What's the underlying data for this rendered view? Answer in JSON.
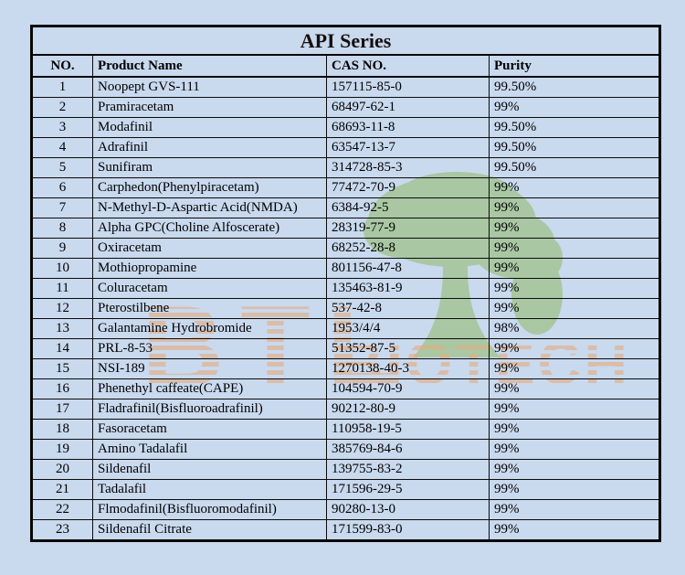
{
  "page": {
    "background_color": "#c9d9ee"
  },
  "table": {
    "title": "API Series",
    "columns": [
      "NO.",
      "Product Name",
      "CAS NO.",
      "Purity"
    ],
    "rows": [
      {
        "no": "1",
        "product": "Noopept GVS-111",
        "cas": "157115-85-0",
        "purity": "99.50%"
      },
      {
        "no": "2",
        "product": "Pramiracetam",
        "cas": "68497-62-1",
        "purity": "99%"
      },
      {
        "no": "3",
        "product": "Modafinil",
        "cas": "68693-11-8",
        "purity": "99.50%"
      },
      {
        "no": "4",
        "product": "Adrafinil",
        "cas": "63547-13-7",
        "purity": "99.50%"
      },
      {
        "no": "5",
        "product": "Sunifiram",
        "cas": "314728-85-3",
        "purity": "99.50%"
      },
      {
        "no": "6",
        "product": "Carphedon(Phenylpiracetam)",
        "cas": "77472-70-9",
        "purity": "99%"
      },
      {
        "no": "7",
        "product": "N-Methyl-D-Aspartic Acid(NMDA)",
        "cas": "6384-92-5",
        "purity": "99%"
      },
      {
        "no": "8",
        "product": "Alpha GPC(Choline Alfoscerate)",
        "cas": "28319-77-9",
        "purity": "99%"
      },
      {
        "no": "9",
        "product": "Oxiracetam",
        "cas": "68252-28-8",
        "purity": "99%"
      },
      {
        "no": "10",
        "product": "Mothiopropamine",
        "cas": "801156-47-8",
        "purity": "99%"
      },
      {
        "no": "11",
        "product": "Coluracetam",
        "cas": "135463-81-9",
        "purity": "99%"
      },
      {
        "no": "12",
        "product": "Pterostilbene",
        "cas": "537-42-8",
        "purity": "99%"
      },
      {
        "no": "13",
        "product": "Galantamine Hydrobromide",
        "cas": "1953/4/4",
        "purity": "98%"
      },
      {
        "no": "14",
        "product": "PRL-8-53",
        "cas": "51352-87-5",
        "purity": "99%"
      },
      {
        "no": "15",
        "product": "NSI-189",
        "cas": "1270138-40-3",
        "purity": "99%"
      },
      {
        "no": "16",
        "product": "Phenethyl caffeate(CAPE)",
        "cas": "104594-70-9",
        "purity": "99%"
      },
      {
        "no": "17",
        "product": "Fladrafinil(Bisfluoroadrafinil)",
        "cas": "90212-80-9",
        "purity": "99%"
      },
      {
        "no": "18",
        "product": "Fasoracetam",
        "cas": "110958-19-5",
        "purity": "99%"
      },
      {
        "no": "19",
        "product": "Amino Tadalafil",
        "cas": "385769-84-6",
        "purity": "99%"
      },
      {
        "no": "20",
        "product": "Sildenafil",
        "cas": "139755-83-2",
        "purity": "99%"
      },
      {
        "no": "21",
        "product": "Tadalafil",
        "cas": "171596-29-5",
        "purity": "99%"
      },
      {
        "no": "22",
        "product": "Flmodafinil(Bisfluoromodafinil)",
        "cas": "90280-13-0",
        "purity": "99%"
      },
      {
        "no": "23",
        "product": "Sildenafil Citrate",
        "cas": "171599-83-0",
        "purity": "99%"
      }
    ]
  },
  "watermark": {
    "letters_large": "BTL",
    "letters_small": "BIOTECH",
    "tree_color": "#a3c493",
    "letter_stripe_color": "#e5ad80"
  }
}
